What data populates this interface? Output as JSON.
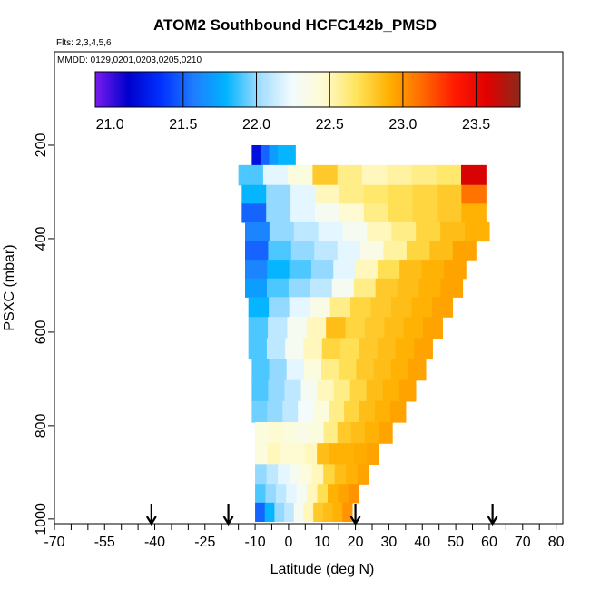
{
  "chart_data": {
    "type": "heatmap",
    "title": "ATOM2 Southbound HCFC142b_PMSD",
    "flights_label": "Flts: 2,3,4,5,6",
    "dates_label": "MMDD: 0129,0201,0203,0205,0210",
    "xlabel": "Latitude (deg N)",
    "ylabel": "PSXC (mbar)",
    "xlim": [
      -70,
      82
    ],
    "ylim": [
      1010,
      0
    ],
    "x_ticks": [
      -70,
      -55,
      -40,
      -25,
      -10,
      0,
      10,
      20,
      30,
      40,
      50,
      60,
      70,
      80
    ],
    "x_tick_labels": [
      "-70",
      "-55",
      "-40",
      "-25",
      "-10",
      "0",
      "10",
      "20",
      "30",
      "40",
      "50",
      "60",
      "70",
      "80"
    ],
    "x_minor_ticks": [
      -65,
      -60,
      -50,
      -45,
      -35,
      -30,
      -20,
      -15,
      -5,
      5,
      15,
      25,
      35,
      45,
      55,
      65,
      75
    ],
    "y_ticks": [
      200,
      400,
      600,
      800,
      1000
    ],
    "y_tick_labels": [
      "200",
      "400",
      "600",
      "800",
      "1000"
    ],
    "colorbar": {
      "min": 20.9,
      "max": 23.8,
      "ticks": [
        21.0,
        21.5,
        22.0,
        22.5,
        23.0,
        23.5
      ],
      "tick_labels": [
        "21.0",
        "21.5",
        "22.0",
        "22.5",
        "23.0",
        "23.5"
      ],
      "colors": [
        "#7a1cf0",
        "#0000cc",
        "#0030ff",
        "#1f7cff",
        "#00b4ff",
        "#9fdcff",
        "#f2fbff",
        "#fffbd0",
        "#ffe45a",
        "#ffb000",
        "#ff6a00",
        "#ff1a00",
        "#e00000",
        "#8b2a1a"
      ]
    },
    "flight_markers_lat": [
      -41,
      -18,
      20,
      61
    ],
    "rows": [
      {
        "p": 220,
        "lat_min": -11,
        "lat_max": 2,
        "values": [
          21.2,
          21.5,
          21.7,
          21.8,
          21.8
        ]
      },
      {
        "p": 265,
        "lat_min": -15,
        "lat_max": 59,
        "values": [
          21.9,
          22.2,
          22.4,
          22.8,
          22.6,
          22.5,
          22.55,
          22.6,
          22.65,
          23.6
        ]
      },
      {
        "p": 305,
        "lat_min": -14,
        "lat_max": 59,
        "values": [
          21.8,
          22.0,
          22.2,
          22.5,
          22.6,
          22.65,
          22.7,
          22.75,
          22.8,
          23.1
        ]
      },
      {
        "p": 345,
        "lat_min": -14,
        "lat_max": 59,
        "values": [
          21.5,
          22.0,
          22.2,
          22.3,
          22.45,
          22.6,
          22.7,
          22.75,
          22.8,
          22.9
        ]
      },
      {
        "p": 385,
        "lat_min": -13,
        "lat_max": 60,
        "values": [
          21.6,
          22.0,
          22.1,
          22.2,
          22.3,
          22.5,
          22.6,
          22.75,
          22.85,
          22.9
        ]
      },
      {
        "p": 425,
        "lat_min": -13,
        "lat_max": 56,
        "values": [
          21.5,
          21.9,
          22.0,
          22.1,
          22.2,
          22.35,
          22.55,
          22.75,
          22.85,
          22.95
        ]
      },
      {
        "p": 465,
        "lat_min": -13,
        "lat_max": 53,
        "values": [
          21.6,
          21.8,
          21.9,
          22.0,
          22.2,
          22.5,
          22.7,
          22.85,
          22.9,
          22.95
        ]
      },
      {
        "p": 505,
        "lat_min": -13,
        "lat_max": 52,
        "values": [
          21.7,
          21.9,
          22.0,
          22.1,
          22.3,
          22.6,
          22.8,
          22.85,
          22.9,
          22.95
        ]
      },
      {
        "p": 545,
        "lat_min": -12,
        "lat_max": 49,
        "values": [
          21.8,
          22.0,
          22.2,
          22.35,
          22.6,
          22.75,
          22.8,
          22.85,
          22.9,
          22.95
        ]
      },
      {
        "p": 590,
        "lat_min": -12,
        "lat_max": 46,
        "values": [
          21.9,
          22.1,
          22.3,
          22.5,
          22.85,
          22.75,
          22.8,
          22.85,
          22.9,
          22.95
        ]
      },
      {
        "p": 635,
        "lat_min": -12,
        "lat_max": 43,
        "values": [
          21.9,
          22.1,
          22.3,
          22.5,
          22.75,
          22.7,
          22.8,
          22.85,
          22.9,
          22.95
        ]
      },
      {
        "p": 680,
        "lat_min": -11,
        "lat_max": 41,
        "values": [
          21.9,
          22.0,
          22.2,
          22.4,
          22.6,
          22.7,
          22.8,
          22.85,
          22.9,
          22.95
        ]
      },
      {
        "p": 725,
        "lat_min": -11,
        "lat_max": 38,
        "values": [
          21.9,
          22.0,
          22.1,
          22.3,
          22.5,
          22.6,
          22.75,
          22.85,
          22.9,
          22.95
        ]
      },
      {
        "p": 770,
        "lat_min": -11,
        "lat_max": 35,
        "values": [
          21.95,
          22.0,
          22.1,
          22.25,
          22.4,
          22.6,
          22.75,
          22.85,
          22.9,
          22.95
        ]
      },
      {
        "p": 815,
        "lat_min": -10,
        "lat_max": 31,
        "values": [
          22.4,
          22.45,
          22.4,
          22.35,
          22.4,
          22.6,
          22.8,
          22.85,
          22.9,
          22.95
        ]
      },
      {
        "p": 860,
        "lat_min": -10,
        "lat_max": 27,
        "values": [
          22.4,
          22.5,
          22.45,
          22.45,
          22.5,
          22.85,
          22.9,
          22.9,
          22.92,
          22.95
        ]
      },
      {
        "p": 905,
        "lat_min": -10,
        "lat_max": 24,
        "values": [
          22.0,
          22.1,
          22.2,
          22.3,
          22.4,
          22.5,
          22.75,
          22.85,
          22.9,
          22.95
        ]
      },
      {
        "p": 945,
        "lat_min": -10,
        "lat_max": 21,
        "values": [
          21.9,
          22.0,
          22.1,
          22.2,
          22.3,
          22.5,
          22.7,
          22.9,
          22.95,
          23.0
        ]
      },
      {
        "p": 985,
        "lat_min": -10,
        "lat_max": 19,
        "values": [
          21.5,
          21.8,
          22.0,
          22.1,
          22.3,
          22.5,
          22.8,
          22.85,
          22.9,
          23.0
        ]
      }
    ]
  }
}
